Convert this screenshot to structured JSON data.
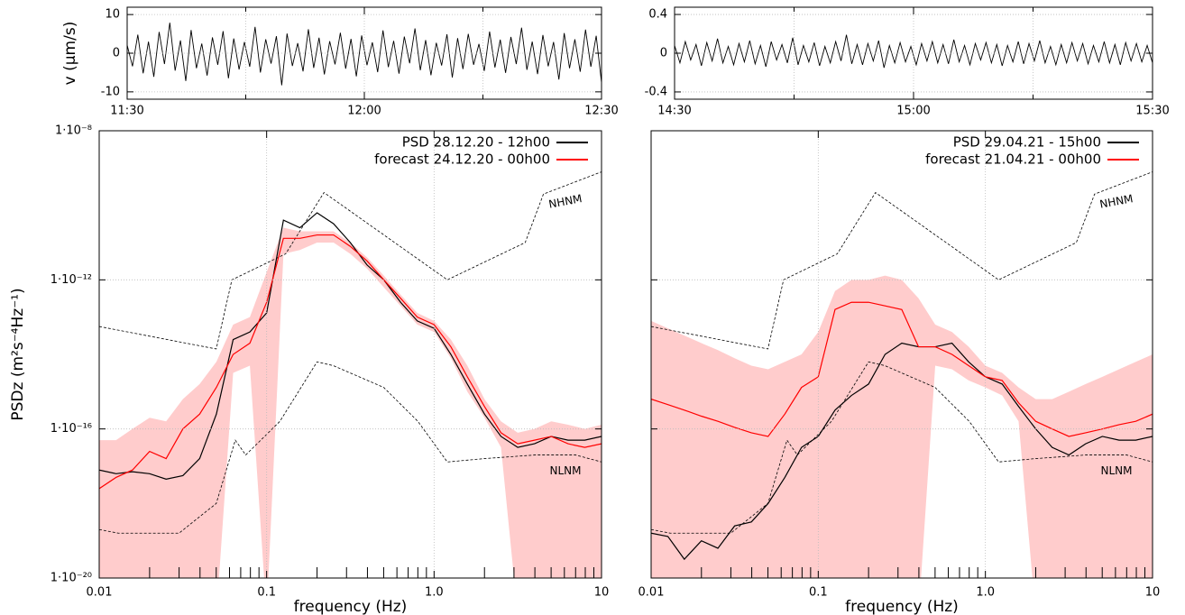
{
  "chart_data": [
    {
      "type": "trace",
      "ylabel": "v (µm/s)",
      "xlim": [
        "11:30",
        "12:30"
      ],
      "xticks": [
        "11:30",
        "12:00",
        "12:30"
      ],
      "ylim": [
        -11.9,
        11.9
      ],
      "yticks": [
        -10,
        0,
        10
      ],
      "grid": true,
      "color": "#000000",
      "values": [
        2.1,
        -3.4,
        4.8,
        -5.2,
        3.0,
        -6.1,
        5.5,
        -2.8,
        7.9,
        -4.5,
        3.3,
        -7.2,
        6.0,
        -3.9,
        2.5,
        -5.8,
        4.1,
        -3.0,
        5.7,
        -6.5,
        3.8,
        -4.2,
        2.9,
        -3.5,
        6.8,
        -5.0,
        3.6,
        -2.7,
        4.4,
        -8.3,
        5.1,
        -3.3,
        2.6,
        -4.7,
        6.2,
        -3.8,
        4.0,
        -5.5,
        3.1,
        -2.9,
        5.3,
        -4.0,
        3.7,
        -6.0,
        4.6,
        -3.1,
        2.8,
        -4.9,
        5.9,
        -3.6,
        3.2,
        -5.3,
        4.3,
        -2.6,
        6.4,
        -4.4,
        3.4,
        -5.7,
        2.7,
        -3.2,
        4.9,
        -6.3,
        3.9,
        -4.1,
        5.0,
        -3.0,
        2.4,
        -4.6,
        5.6,
        -3.7,
        3.5,
        -5.1,
        4.2,
        -2.8,
        6.6,
        -4.3,
        3.0,
        -5.4,
        4.7,
        -3.4,
        2.9,
        -6.8,
        5.2,
        -3.9,
        3.6,
        -4.8,
        6.1,
        -3.5,
        4.5,
        -7.6
      ]
    },
    {
      "type": "trace",
      "xlim": [
        "14:30",
        "15:30"
      ],
      "xticks": [
        "14:30",
        "15:00",
        "15:30"
      ],
      "ylim": [
        -0.475,
        0.475
      ],
      "yticks": [
        -0.4,
        0,
        0.4
      ],
      "grid": true,
      "color": "#000000",
      "values": [
        0.08,
        -0.1,
        0.12,
        -0.07,
        0.09,
        -0.13,
        0.11,
        -0.08,
        0.15,
        -0.1,
        0.07,
        -0.12,
        0.1,
        -0.09,
        0.13,
        -0.11,
        0.08,
        -0.14,
        0.12,
        -0.07,
        0.09,
        -0.1,
        0.16,
        -0.12,
        0.08,
        -0.09,
        0.11,
        -0.13,
        0.07,
        -0.1,
        0.12,
        -0.08,
        0.19,
        -0.11,
        0.09,
        -0.12,
        0.1,
        -0.08,
        0.13,
        -0.15,
        0.08,
        -0.1,
        0.11,
        -0.09,
        0.07,
        -0.12,
        0.1,
        -0.08,
        0.12,
        -0.1,
        0.09,
        -0.11,
        0.14,
        -0.09,
        0.08,
        -0.12,
        0.1,
        -0.07,
        0.11,
        -0.1,
        0.09,
        -0.13,
        0.08,
        -0.09,
        0.12,
        -0.11,
        0.1,
        -0.08,
        0.13,
        -0.1,
        0.07,
        -0.12,
        0.09,
        -0.1,
        0.11,
        -0.08,
        0.1,
        -0.11,
        0.08,
        -0.09,
        0.12,
        -0.1,
        0.09,
        -0.12,
        0.11,
        -0.08,
        0.1,
        -0.09,
        0.08,
        -0.1
      ]
    },
    {
      "type": "psd",
      "xlabel": "frequency (Hz)",
      "ylabel": "PSDz (m²s⁻⁴Hz⁻¹)",
      "log_x": true,
      "log_y": true,
      "grid": true,
      "legend": "top-right",
      "xlim": [
        0.01,
        10
      ],
      "xticks": [
        0.01,
        0.1,
        {
          "value": 1,
          "label": "1.0"
        },
        10
      ],
      "ylim": [
        1e-20,
        1e-08
      ],
      "yticks": [
        {
          "value": 1e-20,
          "label": "1·10⁻²⁰"
        },
        {
          "value": 1e-16,
          "label": "1·10⁻¹⁶"
        },
        {
          "value": 1e-12,
          "label": "1·10⁻¹²"
        },
        {
          "value": 1e-08,
          "label": "1·10⁻⁸"
        }
      ],
      "x": [
        0.01,
        0.0126,
        0.0158,
        0.02,
        0.0251,
        0.0316,
        0.0398,
        0.0501,
        0.0631,
        0.0794,
        0.1,
        0.126,
        0.158,
        0.2,
        0.251,
        0.316,
        0.398,
        0.501,
        0.631,
        0.794,
        1,
        1.26,
        1.58,
        2,
        2.51,
        3.16,
        3.98,
        5.01,
        6.31,
        7.94,
        10
      ],
      "band": {
        "color": "#ffcccc",
        "upper": [
          5e-17,
          5e-17,
          1e-16,
          2e-16,
          1.6e-16,
          6.3e-16,
          1.6e-15,
          6.3e-15,
          6.3e-14,
          1e-13,
          1.6e-12,
          2.5e-11,
          2e-11,
          2e-11,
          2e-11,
          1e-11,
          4e-12,
          1.3e-12,
          4e-13,
          1.3e-13,
          7.9e-14,
          2.5e-14,
          5e-15,
          6.3e-16,
          1.6e-16,
          7.9e-17,
          1e-16,
          1.6e-16,
          1.3e-16,
          1e-16,
          1.3e-16
        ],
        "lower": [
          1e-21,
          1e-21,
          1e-21,
          1e-21,
          1e-21,
          1e-21,
          1e-21,
          1e-21,
          3.2e-15,
          5e-15,
          1e-21,
          5e-12,
          6.3e-12,
          1e-11,
          1e-11,
          5e-12,
          2e-12,
          6.3e-13,
          2e-13,
          6.3e-14,
          4e-14,
          7.9e-15,
          1e-15,
          2e-16,
          3.2e-17,
          1e-21,
          1e-21,
          1e-21,
          1e-21,
          1e-21,
          1e-21
        ]
      },
      "series": [
        {
          "name": "PSD 28.12.20 - 12h00",
          "color": "#000000",
          "values": [
            7.9e-18,
            6.3e-18,
            7.1e-18,
            6.3e-18,
            4.5e-18,
            5.6e-18,
            1.6e-17,
            2.5e-16,
            2.5e-14,
            4e-14,
            1.3e-13,
            4e-11,
            2.5e-11,
            6.3e-11,
            3.2e-11,
            1e-11,
            2.5e-12,
            1e-12,
            2.5e-13,
            7.9e-14,
            5e-14,
            1e-14,
            1.6e-15,
            2.5e-16,
            6.3e-17,
            3.2e-17,
            4e-17,
            6.3e-17,
            5e-17,
            5e-17,
            6.3e-17
          ]
        },
        {
          "name": "forecast 24.12.20 - 00h00",
          "color": "#ff0000",
          "values": [
            2.5e-18,
            5e-18,
            7.9e-18,
            2.5e-17,
            1.6e-17,
            1e-16,
            2.5e-16,
            1.3e-15,
            1e-14,
            2e-14,
            2.5e-13,
            1.3e-11,
            1.3e-11,
            1.6e-11,
            1.6e-11,
            7.9e-12,
            3.2e-12,
            1e-12,
            3.2e-13,
            1e-13,
            6.3e-14,
            1.6e-14,
            2.5e-15,
            4e-16,
            7.9e-17,
            4e-17,
            5e-17,
            6.3e-17,
            4e-17,
            3.2e-17,
            4e-17
          ]
        }
      ],
      "reference_lines": [
        {
          "label": "NHNM",
          "x": [
            0.01,
            0.05,
            0.062,
            0.13,
            0.22,
            1.2,
            3.5,
            4.5,
            10
          ],
          "values": [
            5.6e-14,
            1.4e-14,
            1e-12,
            5e-12,
            2.2e-10,
            1e-12,
            1e-11,
            2e-10,
            7.9e-10
          ]
        },
        {
          "label": "NLNM",
          "x": [
            0.01,
            0.013,
            0.03,
            0.05,
            0.065,
            0.075,
            0.12,
            0.2,
            0.25,
            0.5,
            0.8,
            1.2,
            2,
            4,
            7,
            10
          ],
          "values": [
            2e-19,
            1.6e-19,
            1.6e-19,
            1e-18,
            5e-17,
            2e-17,
            1.6e-16,
            6.3e-15,
            5e-15,
            1.3e-15,
            1.6e-16,
            1.3e-17,
            1.6e-17,
            2e-17,
            2e-17,
            1.3e-17
          ]
        }
      ]
    },
    {
      "type": "psd",
      "xlabel": "frequency (Hz)",
      "log_x": true,
      "log_y": true,
      "grid": true,
      "legend": "top-right",
      "ytick_labels": false,
      "xlim": [
        0.01,
        10
      ],
      "xticks": [
        0.01,
        0.1,
        {
          "value": 1,
          "label": "1.0"
        },
        10
      ],
      "ylim": [
        1e-20,
        1e-08
      ],
      "yticks": [
        1e-20,
        1e-16,
        1e-12,
        1e-08
      ],
      "x": [
        0.01,
        0.0126,
        0.0158,
        0.02,
        0.0251,
        0.0316,
        0.0398,
        0.0501,
        0.0631,
        0.0794,
        0.1,
        0.126,
        0.158,
        0.2,
        0.251,
        0.316,
        0.398,
        0.501,
        0.631,
        0.794,
        1,
        1.26,
        1.58,
        2,
        2.51,
        3.16,
        3.98,
        5.01,
        6.31,
        7.94,
        10
      ],
      "band": {
        "color": "#ffcccc",
        "upper": [
          7.9e-14,
          5e-14,
          3.2e-14,
          2e-14,
          1.3e-14,
          7.9e-15,
          5e-15,
          4e-15,
          6.3e-15,
          1e-14,
          4e-14,
          5e-13,
          1e-12,
          1e-12,
          1.3e-12,
          1e-12,
          3.2e-13,
          6.3e-14,
          4e-14,
          1.6e-14,
          5e-15,
          3.2e-15,
          1.3e-15,
          6.3e-16,
          6.3e-16,
          1e-15,
          1.6e-15,
          2.5e-15,
          4e-15,
          6.3e-15,
          1e-14
        ],
        "lower": [
          1e-21,
          1e-21,
          1e-21,
          1e-21,
          1e-21,
          1e-21,
          1e-21,
          1e-21,
          1e-21,
          1e-21,
          1e-21,
          1e-21,
          1e-21,
          1e-21,
          1e-21,
          1e-21,
          1e-21,
          5e-15,
          4e-15,
          2e-15,
          1.3e-15,
          7.9e-16,
          1.6e-16,
          1e-21,
          1e-21,
          1e-21,
          1e-21,
          1e-21,
          1e-21,
          1e-21,
          1e-21
        ]
      },
      "series": [
        {
          "name": "PSD 29.04.21 - 15h00",
          "color": "#000000",
          "values": [
            1.6e-19,
            1.3e-19,
            3.2e-20,
            1e-19,
            6.3e-20,
            2.5e-19,
            3.2e-19,
            1e-18,
            5e-18,
            3.2e-17,
            6.3e-17,
            3.2e-16,
            7.9e-16,
            1.6e-15,
            1e-14,
            2e-14,
            1.6e-14,
            1.6e-14,
            2e-14,
            6.3e-15,
            2.5e-15,
            1.6e-15,
            4e-16,
            1e-16,
            3.2e-17,
            2e-17,
            4e-17,
            6.3e-17,
            5e-17,
            5e-17,
            6.3e-17
          ]
        },
        {
          "name": "forecast 21.04.21 - 00h00",
          "color": "#ff0000",
          "values": [
            6.3e-16,
            4.5e-16,
            3.2e-16,
            2.2e-16,
            1.6e-16,
            1.1e-16,
            7.9e-17,
            6.3e-17,
            2.5e-16,
            1.3e-15,
            2.5e-15,
            1.6e-13,
            2.5e-13,
            2.5e-13,
            2e-13,
            1.6e-13,
            1.6e-14,
            1.6e-14,
            1e-14,
            5e-15,
            2.5e-15,
            2e-15,
            5e-16,
            1.6e-16,
            1e-16,
            6.3e-17,
            7.9e-17,
            1e-16,
            1.3e-16,
            1.6e-16,
            2.5e-16
          ]
        }
      ],
      "reference_lines": [
        {
          "label": "NHNM",
          "x": [
            0.01,
            0.05,
            0.062,
            0.13,
            0.22,
            1.2,
            3.5,
            4.5,
            10
          ],
          "values": [
            5.6e-14,
            1.4e-14,
            1e-12,
            5e-12,
            2.2e-10,
            1e-12,
            1e-11,
            2e-10,
            7.9e-10
          ]
        },
        {
          "label": "NLNM",
          "x": [
            0.01,
            0.013,
            0.03,
            0.05,
            0.065,
            0.075,
            0.12,
            0.2,
            0.25,
            0.5,
            0.8,
            1.2,
            2,
            4,
            7,
            10
          ],
          "values": [
            2e-19,
            1.6e-19,
            1.6e-19,
            1e-18,
            5e-17,
            2e-17,
            1.6e-16,
            6.3e-15,
            5e-15,
            1.3e-15,
            1.6e-16,
            1.3e-17,
            1.6e-17,
            2e-17,
            2e-17,
            1.3e-17
          ]
        }
      ]
    }
  ]
}
